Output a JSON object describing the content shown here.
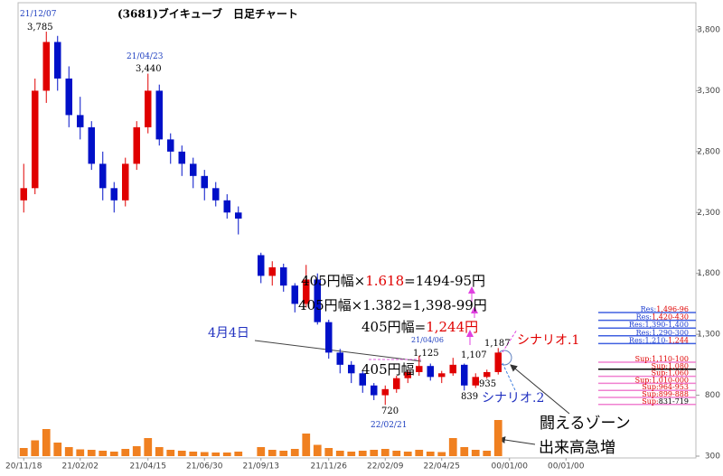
{
  "chart_data": {
    "type": "candlestick",
    "title": "(3681)ブイキューブ　日足チャート",
    "up_color": "#e00000",
    "down_color": "#0010c8",
    "volume_color": "#f08020",
    "categories": [
      "20/11/18",
      null,
      null,
      null,
      null,
      "21/02/02",
      null,
      null,
      null,
      null,
      null,
      "21/04/15",
      null,
      null,
      null,
      null,
      "21/06/30",
      null,
      null,
      null,
      null,
      "21/09/13",
      null,
      null,
      null,
      null,
      null,
      "21/11/26",
      null,
      null,
      null,
      null,
      "22/02/09",
      null,
      null,
      null,
      null,
      "22/04/25",
      null,
      null,
      null,
      null,
      null,
      "00/01/00",
      null,
      null,
      null,
      null,
      "00/01/00",
      null,
      null,
      null,
      null,
      null,
      null,
      null,
      null,
      null,
      null,
      null
    ],
    "ohlc": [
      [
        2400,
        2700,
        2300,
        2500
      ],
      [
        2500,
        3400,
        2450,
        3300
      ],
      [
        3300,
        3785,
        3200,
        3700
      ],
      [
        3700,
        3750,
        3300,
        3400
      ],
      [
        3400,
        3500,
        3000,
        3100
      ],
      [
        3100,
        3250,
        2900,
        3000
      ],
      [
        3000,
        3050,
        2650,
        2700
      ],
      [
        2700,
        2800,
        2400,
        2500
      ],
      [
        2500,
        2550,
        2300,
        2400
      ],
      [
        2400,
        2750,
        2350,
        2700
      ],
      [
        2700,
        3050,
        2650,
        3000
      ],
      [
        3000,
        3440,
        2950,
        3300
      ],
      [
        3300,
        3350,
        2850,
        2900
      ],
      [
        2900,
        2950,
        2700,
        2800
      ],
      [
        2800,
        2850,
        2600,
        2700
      ],
      [
        2700,
        2750,
        2500,
        2600
      ],
      [
        2600,
        2650,
        2400,
        2500
      ],
      [
        2500,
        2550,
        2350,
        2400
      ],
      [
        2400,
        2450,
        2250,
        2300
      ],
      [
        2300,
        2350,
        2120,
        2250
      ],
      null,
      [
        1950,
        1970,
        1720,
        1780
      ],
      [
        1780,
        1900,
        1700,
        1850
      ],
      [
        1850,
        1880,
        1650,
        1700
      ],
      [
        1700,
        1720,
        1480,
        1550
      ],
      [
        1550,
        1870,
        1520,
        1750
      ],
      [
        1750,
        1800,
        1380,
        1400
      ],
      [
        1400,
        1420,
        1100,
        1150
      ],
      [
        1150,
        1180,
        980,
        1050
      ],
      [
        1050,
        1080,
        900,
        980
      ],
      [
        980,
        1000,
        820,
        880
      ],
      [
        880,
        900,
        760,
        800
      ],
      [
        800,
        880,
        720,
        850
      ],
      [
        850,
        960,
        820,
        940
      ],
      [
        940,
        1010,
        900,
        990
      ],
      [
        990,
        1125,
        960,
        1040
      ],
      [
        1040,
        1060,
        920,
        950
      ],
      [
        950,
        1000,
        900,
        980
      ],
      [
        980,
        1107,
        960,
        1050
      ],
      [
        1050,
        1060,
        839,
        880
      ],
      [
        880,
        980,
        860,
        950
      ],
      [
        950,
        1010,
        935,
        990
      ],
      [
        990,
        1187,
        970,
        1150
      ],
      null,
      null,
      null,
      null,
      null,
      null,
      null,
      null,
      null,
      null,
      null,
      null,
      null,
      null,
      null,
      null,
      null
    ],
    "volume": [
      18,
      35,
      60,
      30,
      20,
      15,
      14,
      12,
      10,
      16,
      22,
      40,
      20,
      14,
      12,
      10,
      9,
      8,
      8,
      10,
      null,
      20,
      14,
      12,
      16,
      50,
      25,
      18,
      12,
      10,
      12,
      14,
      16,
      12,
      10,
      14,
      10,
      9,
      40,
      20,
      14,
      12,
      80,
      null,
      null,
      null,
      null,
      null,
      null,
      null,
      null,
      null,
      null,
      null,
      null,
      null,
      null,
      null,
      null,
      null
    ],
    "volume_ylim": [
      0,
      100
    ],
    "ylim": [
      300,
      3800
    ],
    "yticks": [
      300,
      800,
      {
        "value": 1300,
        "label": "1,300"
      },
      {
        "value": 1800,
        "label": "1,800"
      },
      {
        "value": 2300,
        "label": "2,300"
      },
      {
        "value": 2800,
        "label": "2,800"
      },
      {
        "value": 3300,
        "label": "3,300"
      },
      {
        "value": 3800,
        "label": "3,800"
      }
    ],
    "annotations": [
      {
        "segments": [
          {
            "text": "21/12/07",
            "color": "#2040c0"
          }
        ]
      },
      {
        "segments": [
          {
            "text": "3,785",
            "color": "#000000"
          }
        ]
      },
      {
        "segments": [
          {
            "text": "21/04/23",
            "color": "#2040c0"
          }
        ]
      },
      {
        "segments": [
          {
            "text": "3,440",
            "color": "#000000"
          }
        ]
      },
      {
        "segments": [
          {
            "text": "405円幅×",
            "color": "#000000"
          },
          {
            "text": "1.618",
            "color": "#e00000"
          },
          {
            "text": "=1494-95円",
            "color": "#000000"
          }
        ]
      },
      {
        "segments": [
          {
            "text": "405円幅×1.382=1,398-99円",
            "color": "#000000"
          }
        ]
      },
      {
        "segments": [
          {
            "text": "405円幅=",
            "color": "#000000"
          },
          {
            "text": "1,244円",
            "color": "#e00000"
          }
        ]
      },
      {
        "segments": [
          {
            "text": "4月4日",
            "color": "#2030c0"
          }
        ]
      },
      {
        "segments": [
          {
            "text": "21/04/06",
            "color": "#2040c0"
          }
        ]
      },
      {
        "segments": [
          {
            "text": "1,125",
            "color": "#000000"
          }
        ]
      },
      {
        "segments": [
          {
            "text": "405円幅",
            "color": "#000000"
          }
        ]
      },
      {
        "segments": [
          {
            "text": "1,107",
            "color": "#000000"
          }
        ]
      },
      {
        "segments": [
          {
            "text": "1,187",
            "color": "#000000"
          }
        ]
      },
      {
        "segments": [
          {
            "text": "シナリオ.1",
            "color": "#e00000"
          }
        ]
      },
      {
        "segments": [
          {
            "text": "シナリオ.2",
            "color": "#2030c0"
          }
        ]
      },
      {
        "segments": [
          {
            "text": "839",
            "color": "#000000"
          }
        ]
      },
      {
        "segments": [
          {
            "text": "935",
            "color": "#000000"
          }
        ]
      },
      {
        "segments": [
          {
            "text": "720",
            "color": "#000000"
          }
        ]
      },
      {
        "segments": [
          {
            "text": "22/02/21",
            "color": "#2040c0"
          }
        ]
      },
      {
        "segments": [
          {
            "text": "闘えるゾーン",
            "color": "#000000"
          }
        ]
      },
      {
        "segments": [
          {
            "text": "出来高急増",
            "color": "#000000"
          }
        ]
      }
    ],
    "zones": [
      {
        "line_color": "#4060e0",
        "segments": [
          {
            "text": "Res:",
            "color": "#2040d0"
          },
          {
            "text": "1,496-96",
            "color": "#e00000"
          }
        ]
      },
      {
        "line_color": "#4060e0",
        "segments": [
          {
            "text": "Res:",
            "color": "#2040d0"
          },
          {
            "text": "1,420-430",
            "color": "#e00000"
          }
        ]
      },
      {
        "line_color": "#4060e0",
        "segments": [
          {
            "text": "Res:1,390-1,400",
            "color": "#2040d0"
          }
        ]
      },
      {
        "line_color": "#4060e0",
        "segments": [
          {
            "text": "Res:1,290-300",
            "color": "#2040d0"
          }
        ]
      },
      {
        "line_color": "#4060e0",
        "segments": [
          {
            "text": "Res:1,210-",
            "color": "#2040d0"
          },
          {
            "text": "1,244",
            "color": "#e00000"
          }
        ]
      },
      {
        "line_color": "#f080d0",
        "segments": [
          {
            "text": "Sup:1,110-100",
            "color": "#e00000"
          }
        ]
      },
      {
        "line_color": "#000000",
        "segments": [
          {
            "text": "Sup:1,080",
            "color": "#e00000"
          }
        ]
      },
      {
        "line_color": "#f080d0",
        "segments": [
          {
            "text": "Sup:1,060",
            "color": "#e00000"
          }
        ]
      },
      {
        "line_color": "#f080d0",
        "segments": [
          {
            "text": "Sup:1,010-000",
            "color": "#e00000"
          }
        ]
      },
      {
        "line_color": "#f080d0",
        "segments": [
          {
            "text": "Sup:964-953",
            "color": "#e00000"
          }
        ]
      },
      {
        "line_color": "#f080d0",
        "segments": [
          {
            "text": "Sup:899-888",
            "color": "#e00000"
          }
        ]
      },
      {
        "line_color": "#f080d0",
        "segments": [
          {
            "text": "Sup:",
            "color": "#e00000"
          },
          {
            "text": "831-719",
            "color": "#000000"
          }
        ]
      }
    ]
  }
}
